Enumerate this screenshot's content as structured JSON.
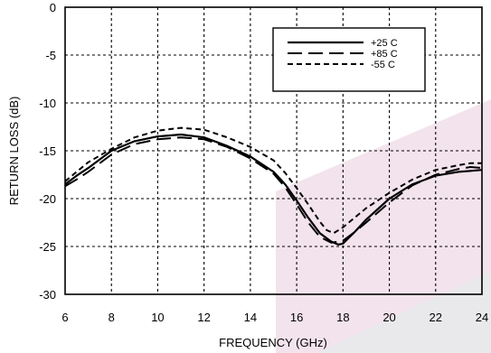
{
  "chart_data": {
    "type": "line",
    "xlabel": "FREQUENCY (GHz)",
    "ylabel": "RETURN LOSS (dB)",
    "xlim": [
      6,
      24
    ],
    "ylim": [
      -30,
      0
    ],
    "xticks": [
      6,
      8,
      10,
      12,
      14,
      16,
      18,
      20,
      22,
      24
    ],
    "yticks": [
      0,
      -5,
      -10,
      -15,
      -20,
      -25,
      -30
    ],
    "xtick_labels": [
      "6",
      "8",
      "10",
      "12",
      "14",
      "16",
      "18",
      "20",
      "22",
      "24"
    ],
    "ytick_labels": [
      "0",
      "-5",
      "-10",
      "-15",
      "-20",
      "-25",
      "-30"
    ],
    "grid": true,
    "grid_style": "dashed",
    "legend_position": "top-right",
    "series": [
      {
        "name": "+25 C",
        "line_style": "solid",
        "x": [
          6,
          6.5,
          7,
          8,
          9,
          10,
          11,
          12,
          13,
          14,
          15,
          15.5,
          16,
          16.5,
          17,
          17.5,
          17.8,
          18,
          18.5,
          19,
          20,
          21,
          22,
          23,
          23.5,
          24
        ],
        "y": [
          -18.5,
          -17.6,
          -16.8,
          -15.0,
          -14.0,
          -13.5,
          -13.3,
          -13.6,
          -14.5,
          -15.6,
          -17.2,
          -18.5,
          -20.2,
          -22.0,
          -23.6,
          -24.5,
          -24.8,
          -24.7,
          -23.5,
          -22.2,
          -20.0,
          -18.5,
          -17.6,
          -17.2,
          -17.1,
          -17.0
        ]
      },
      {
        "name": "+85 C",
        "line_style": "long-dash",
        "x": [
          6,
          6.5,
          7,
          8,
          9,
          10,
          11,
          12,
          13,
          14,
          15,
          15.5,
          16,
          16.5,
          17,
          17.5,
          18,
          18.5,
          19,
          20,
          21,
          22,
          23,
          23.5,
          24
        ],
        "y": [
          -18.7,
          -18.0,
          -17.2,
          -15.4,
          -14.3,
          -13.8,
          -13.6,
          -13.8,
          -14.6,
          -15.8,
          -17.4,
          -18.8,
          -20.6,
          -22.5,
          -24.0,
          -24.6,
          -24.4,
          -23.5,
          -22.5,
          -20.4,
          -18.6,
          -17.5,
          -16.9,
          -16.7,
          -16.8
        ]
      },
      {
        "name": "-55 C",
        "line_style": "short-dash",
        "x": [
          6,
          6.5,
          7,
          8,
          9,
          10,
          11,
          12,
          13,
          14,
          15,
          15.5,
          16,
          16.5,
          17,
          17.3,
          17.6,
          18,
          18.5,
          19,
          20,
          21,
          22,
          23,
          23.5,
          24
        ],
        "y": [
          -18.2,
          -17.2,
          -16.2,
          -14.8,
          -13.6,
          -12.9,
          -12.6,
          -12.8,
          -13.6,
          -14.6,
          -16.0,
          -17.3,
          -18.9,
          -20.6,
          -22.4,
          -23.3,
          -23.6,
          -23.0,
          -22.0,
          -21.0,
          -19.4,
          -18.0,
          -17.0,
          -16.5,
          -16.3,
          -16.3
        ]
      }
    ]
  }
}
